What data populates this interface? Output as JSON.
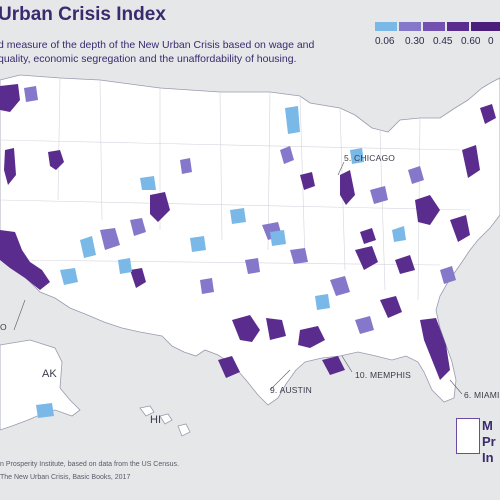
{
  "title": "Urban Crisis Index",
  "subtitle": "d measure of the depth of the New Urban Crisis based on wage and quality, economic segregation and the unaffordability of housing.",
  "legend": {
    "ticks": [
      "0.06",
      "0.30",
      "0.45",
      "0.60",
      "0"
    ],
    "colors": [
      "#7ab8e8",
      "#8577c9",
      "#7251b0",
      "#5a2c8e",
      "#4a1e7a"
    ]
  },
  "states": {
    "ak": "AK",
    "hi": "HI"
  },
  "city_labels": {
    "chicago": "5. CHICAGO",
    "austin": "9. AUSTIN",
    "memphis": "10. MEMPHIS",
    "miami": "6. MIAMI",
    "la_stub": "O"
  },
  "footer": {
    "line1": "n Prosperity Institute, based on data from the US Census.",
    "line2": "The New Urban Crisis, Basic Books, 2017"
  },
  "logo": {
    "text1": "M",
    "text2": "Pr",
    "text3": "In"
  },
  "colors": {
    "land": "#ffffff",
    "background": "#e6e7e9",
    "border": "#8a8aa0",
    "light_blue": "#7ab8e8",
    "mid_purple": "#8577c9",
    "dark_purple": "#5a2c8e"
  }
}
